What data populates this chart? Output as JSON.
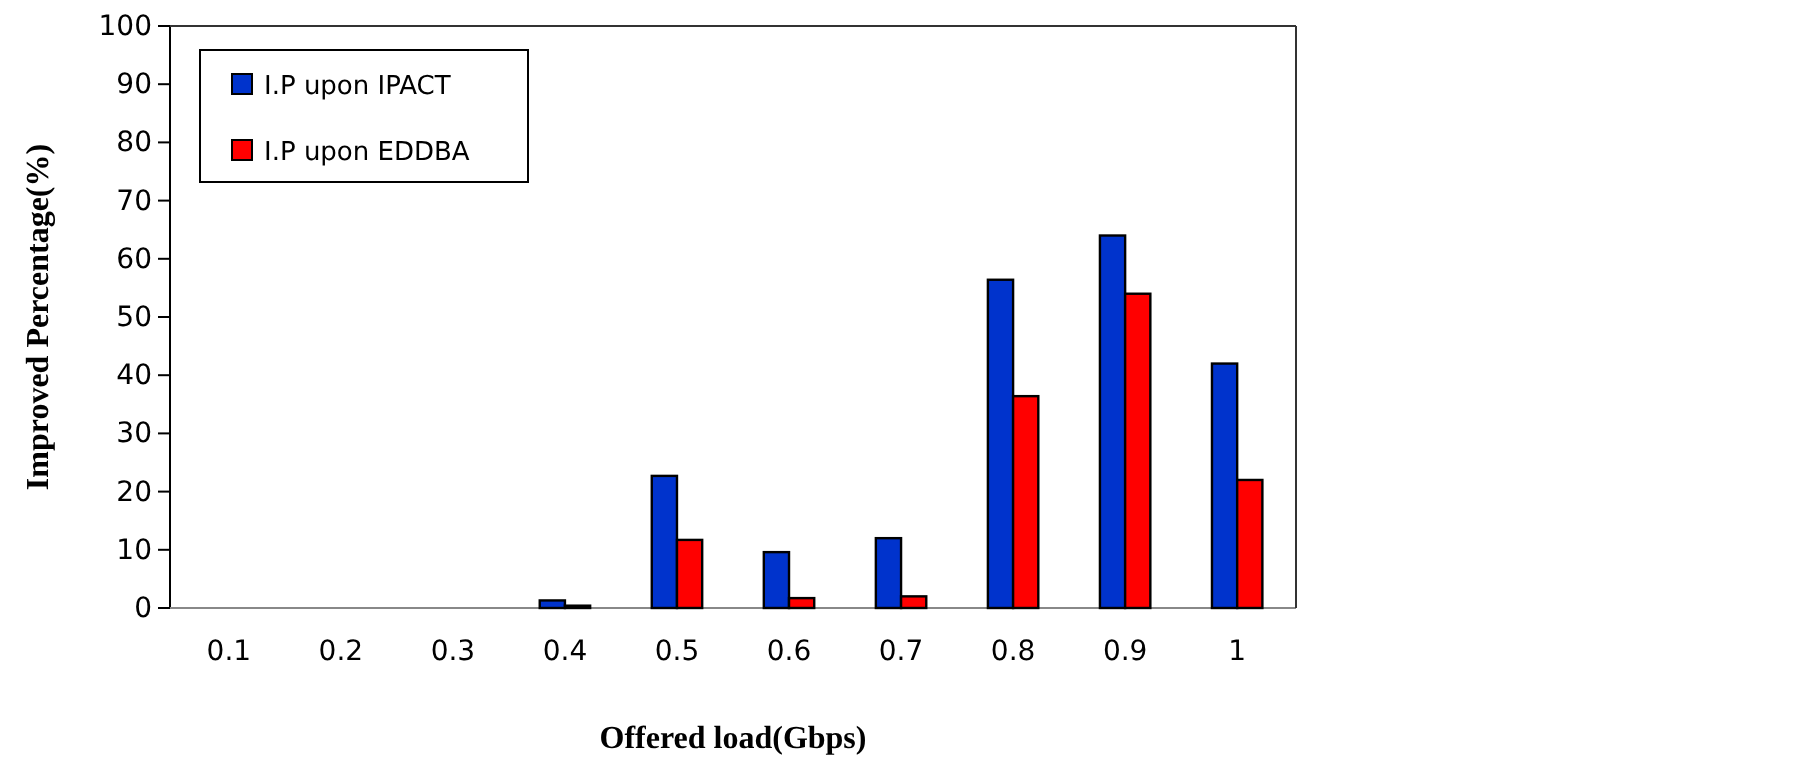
{
  "chart_data": {
    "type": "bar",
    "xlabel": "Offered load(Gbps)",
    "ylabel": "Improved Percentage(%)",
    "categories": [
      "0.1",
      "0.2",
      "0.3",
      "0.4",
      "0.5",
      "0.6",
      "0.7",
      "0.8",
      "0.9",
      "1"
    ],
    "series": [
      {
        "name": "I.P upon IPACT",
        "color": "#0033cc",
        "values": [
          0,
          0,
          0,
          1.3,
          22.7,
          9.6,
          12,
          56.4,
          64,
          42
        ]
      },
      {
        "name": "I.P upon EDDBA",
        "color": "#ff0000",
        "values": [
          0,
          0,
          0,
          0.4,
          11.7,
          1.7,
          2,
          36.4,
          54,
          22
        ]
      }
    ],
    "ylim": [
      0,
      100
    ],
    "yticks": [
      0,
      10,
      20,
      30,
      40,
      50,
      60,
      70,
      80,
      90,
      100
    ],
    "grid": false,
    "legend": "top left"
  }
}
